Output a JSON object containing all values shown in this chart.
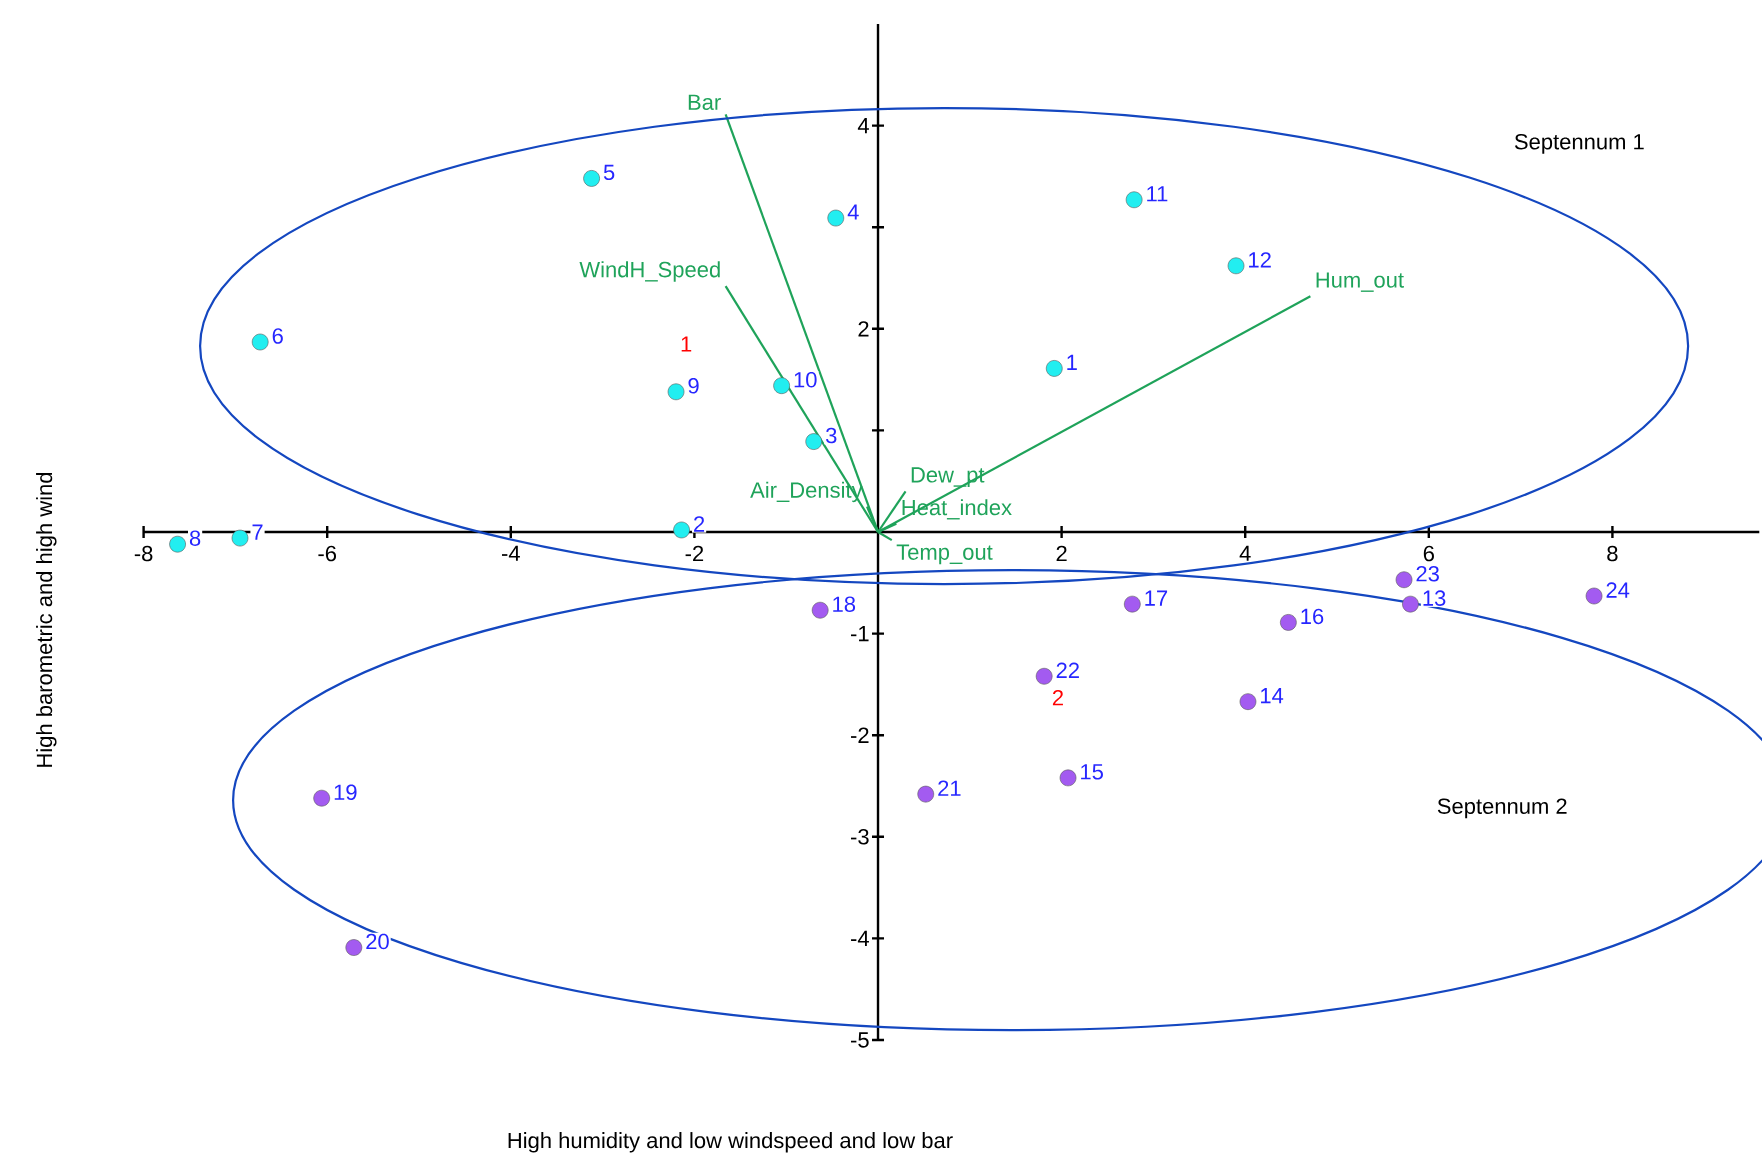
{
  "chart_data": {
    "type": "scatter",
    "xlabel": "High humidity and low windspeed and low bar",
    "ylabel": "High barometric and high wind",
    "xlim": [
      -8,
      9.6
    ],
    "ylim": [
      -5,
      5
    ],
    "xticks": [
      -8,
      -6,
      -4,
      -2,
      2,
      4,
      6,
      8
    ],
    "yticks": [
      -5,
      -4,
      -3,
      -2,
      -1,
      {
        "value": 1,
        "label": null
      },
      2,
      {
        "value": 3,
        "label": null
      },
      4
    ],
    "marker": "circle",
    "series": [
      {
        "color": "#22eef0",
        "x": [
          1.92,
          -2.14,
          -0.7,
          -0.46,
          -3.12,
          -6.73,
          -6.95,
          -7.63,
          -2.2,
          -1.05,
          2.79,
          3.9
        ],
        "values": [
          1.61,
          0.02,
          0.89,
          3.09,
          3.48,
          1.87,
          -0.06,
          -0.12,
          1.38,
          1.44,
          3.27,
          2.62
        ]
      },
      {
        "color": "#a35bf0",
        "x": [
          5.8,
          4.03,
          2.07,
          4.47,
          2.77,
          -0.63,
          -6.06,
          -5.71,
          0.52,
          1.81,
          5.73,
          7.8
        ],
        "values": [
          -0.71,
          -1.67,
          -2.42,
          -0.89,
          -0.71,
          -0.77,
          -2.62,
          -4.09,
          -2.58,
          -1.42,
          -0.47,
          -0.63
        ]
      },
      {
        "type": "line",
        "marker": "none",
        "name": "Bar",
        "color": "#1fa35a",
        "x": [
          0,
          -1.66
        ],
        "values": [
          0,
          4.11
        ]
      },
      {
        "type": "line",
        "marker": "none",
        "name": "WindH_Speed",
        "color": "#1fa35a",
        "x": [
          0,
          -1.66
        ],
        "values": [
          0,
          2.42
        ]
      },
      {
        "type": "line",
        "marker": "none",
        "name": "Hum_out",
        "color": "#1fa35a",
        "x": [
          0,
          4.71
        ],
        "values": [
          0,
          2.32
        ]
      },
      {
        "type": "line",
        "marker": "none",
        "name": "Air_Density",
        "color": "#1fa35a",
        "x": [
          0,
          -0.12
        ],
        "values": [
          0,
          0.25
        ]
      },
      {
        "type": "line",
        "marker": "none",
        "name": "Dew_pt",
        "color": "#1fa35a",
        "x": [
          0,
          0.3
        ],
        "values": [
          0,
          0.4
        ]
      },
      {
        "type": "line",
        "marker": "none",
        "name": "Heat_index",
        "color": "#1fa35a",
        "x": [
          0,
          0.2
        ],
        "values": [
          0,
          0.08
        ]
      },
      {
        "type": "line",
        "marker": "none",
        "name": "Temp_out",
        "color": "#1fa35a",
        "x": [
          0,
          0.15
        ],
        "values": [
          0,
          -0.08
        ]
      }
    ],
    "annotations": [
      {
        "text": "1",
        "x": 1.92,
        "y": 1.61
      },
      {
        "text": "2",
        "x": -2.14,
        "y": 0.02
      },
      {
        "text": "3",
        "x": -0.7,
        "y": 0.89
      },
      {
        "text": "4",
        "x": -0.46,
        "y": 3.09
      },
      {
        "text": "5",
        "x": -3.12,
        "y": 3.48
      },
      {
        "text": "6",
        "x": -6.73,
        "y": 1.87
      },
      {
        "text": "7",
        "x": -6.95,
        "y": -0.06
      },
      {
        "text": "8",
        "x": -7.63,
        "y": -0.12
      },
      {
        "text": "9",
        "x": -2.2,
        "y": 1.38
      },
      {
        "text": "10",
        "x": -1.05,
        "y": 1.44
      },
      {
        "text": "11",
        "x": 2.79,
        "y": 3.27
      },
      {
        "text": "12",
        "x": 3.9,
        "y": 2.62
      },
      {
        "text": "13",
        "x": 5.8,
        "y": -0.71
      },
      {
        "text": "14",
        "x": 4.03,
        "y": -1.67
      },
      {
        "text": "15",
        "x": 2.07,
        "y": -2.42
      },
      {
        "text": "16",
        "x": 4.47,
        "y": -0.89
      },
      {
        "text": "17",
        "x": 2.77,
        "y": -0.71
      },
      {
        "text": "18",
        "x": -0.63,
        "y": -0.77
      },
      {
        "text": "19",
        "x": -6.06,
        "y": -2.62
      },
      {
        "text": "20",
        "x": -5.71,
        "y": -4.09
      },
      {
        "text": "21",
        "x": 0.52,
        "y": -2.58
      },
      {
        "text": "22",
        "x": 1.81,
        "y": -1.42
      },
      {
        "text": "23",
        "x": 5.73,
        "y": -0.47
      },
      {
        "text": "24",
        "x": 7.8,
        "y": -0.63
      },
      "Septennum 1",
      "Septennum 2",
      "1",
      "2"
    ]
  }
}
